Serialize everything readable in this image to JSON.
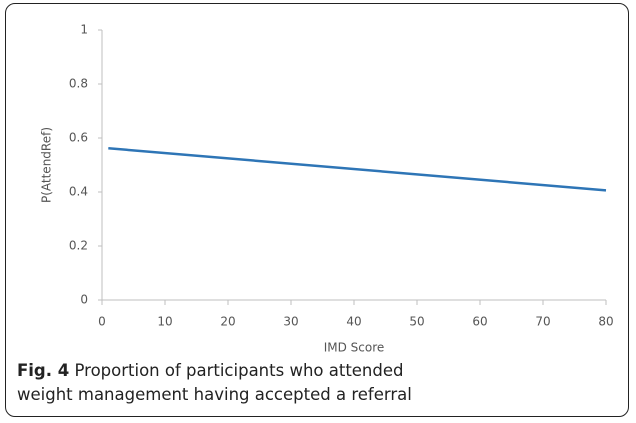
{
  "chart_data": {
    "type": "line",
    "x": [
      1,
      80
    ],
    "series": [
      {
        "color": "#2e75b6",
        "values": [
          0.562,
          0.406
        ]
      }
    ],
    "xlim": [
      0,
      80
    ],
    "xticks": [
      0,
      10,
      20,
      30,
      40,
      50,
      60,
      70,
      80
    ],
    "ylim": [
      0,
      1
    ],
    "yticks": [
      0,
      0.2,
      0.4,
      0.6,
      0.8,
      1
    ],
    "x_label": "IMD Score",
    "y_label": "P(AttendRef)",
    "caption_label": "Fig. 4",
    "caption_text": "Proportion of participants who attended weight management having accepted a referral"
  }
}
